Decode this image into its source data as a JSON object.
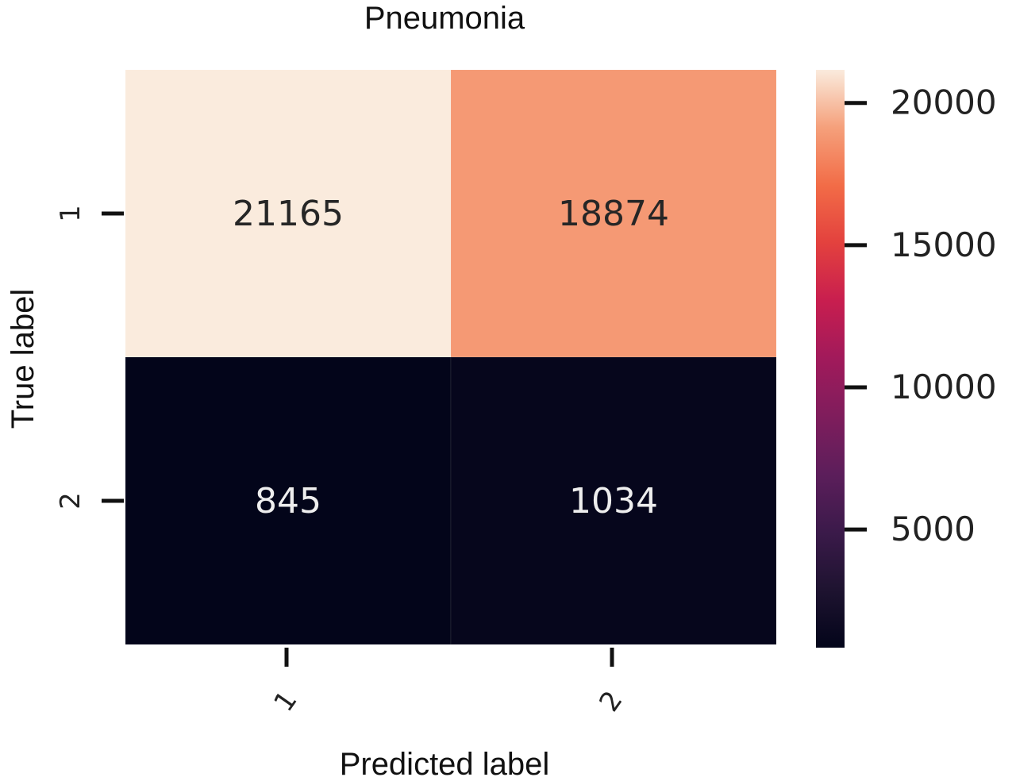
{
  "chart_data": {
    "type": "heatmap",
    "title": "Pneumonia",
    "xlabel": "Predicted label",
    "ylabel": "True label",
    "x_categories": [
      "1",
      "2"
    ],
    "y_categories": [
      "1",
      "2"
    ],
    "values": [
      [
        21165,
        18874
      ],
      [
        845,
        1034
      ]
    ],
    "colorbar": {
      "ticks": [
        5000,
        10000,
        15000,
        20000
      ],
      "range": [
        845,
        21165
      ],
      "colormap": "rocket"
    },
    "colors": {
      "annotation_dark": "#262626",
      "annotation_light": "#eeeeee"
    }
  }
}
